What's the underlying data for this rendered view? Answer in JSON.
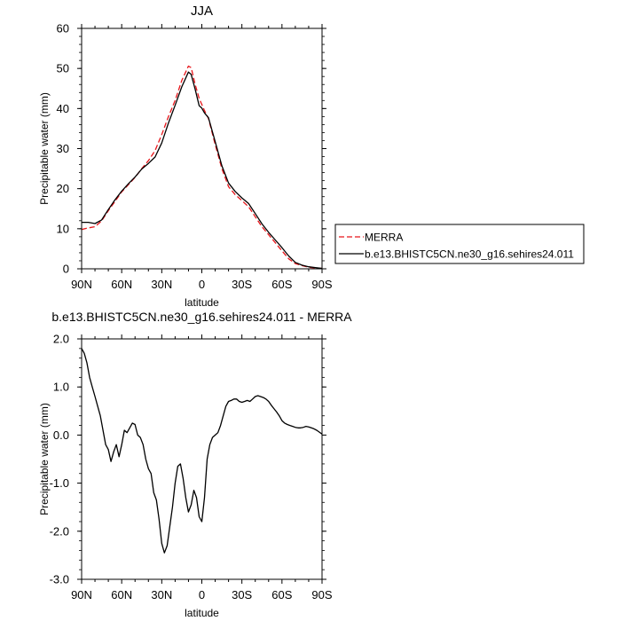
{
  "chart_data": [
    {
      "type": "line",
      "title": "JJA",
      "xlabel": "latitude",
      "ylabel": "Precipitable water (mm)",
      "xlim": [
        90,
        -90
      ],
      "ylim": [
        0,
        60
      ],
      "xticks": [
        90,
        60,
        30,
        0,
        -30,
        -60,
        -90
      ],
      "xtick_labels": [
        "90N",
        "60N",
        "30N",
        "0",
        "30S",
        "60S",
        "90S"
      ],
      "yticks": [
        0,
        10,
        20,
        30,
        40,
        50,
        60
      ],
      "ytick_labels": [
        "0",
        "10",
        "20",
        "30",
        "40",
        "50",
        "60"
      ],
      "grid": false,
      "legend": "outside-right",
      "series": [
        {
          "name": "MERRA",
          "color": "#e8161b",
          "dash": "dashed",
          "x": [
            90,
            85,
            80,
            75,
            70,
            65,
            60,
            55,
            50,
            45,
            40,
            35,
            30,
            25,
            20,
            15,
            10,
            8,
            5,
            2,
            0,
            -2,
            -5,
            -10,
            -15,
            -20,
            -25,
            -30,
            -35,
            -40,
            -45,
            -50,
            -55,
            -60,
            -65,
            -70,
            -75,
            -80,
            -85,
            -90
          ],
          "y": [
            9.8,
            10.2,
            10.5,
            12.0,
            14.5,
            16.8,
            19.2,
            21.0,
            22.8,
            25.0,
            27.0,
            29.5,
            33.5,
            38.0,
            42.0,
            47.0,
            50.6,
            50.2,
            46.0,
            42.5,
            41.0,
            39.5,
            37.5,
            31.0,
            25.0,
            20.5,
            18.5,
            17.0,
            15.5,
            13.0,
            10.5,
            8.5,
            6.5,
            4.5,
            2.5,
            1.3,
            0.8,
            0.4,
            0.2,
            0.1
          ]
        },
        {
          "name": "b.e13.BHISTC5CN.ne30_g16.sehires24.011",
          "color": "#000000",
          "dash": "solid",
          "x": [
            90,
            85,
            80,
            75,
            70,
            65,
            60,
            55,
            50,
            45,
            40,
            35,
            30,
            25,
            20,
            15,
            10,
            8,
            5,
            2,
            0,
            -2,
            -5,
            -10,
            -15,
            -20,
            -25,
            -30,
            -35,
            -40,
            -45,
            -50,
            -55,
            -60,
            -65,
            -70,
            -75,
            -80,
            -85,
            -90
          ],
          "y": [
            11.6,
            11.6,
            11.3,
            12.2,
            14.8,
            17.2,
            19.4,
            21.2,
            22.9,
            24.9,
            26.3,
            27.9,
            31.4,
            36.4,
            40.8,
            45.4,
            49.1,
            48.5,
            44.8,
            40.7,
            40.1,
            38.9,
            37.7,
            31.7,
            25.7,
            21.4,
            19.3,
            17.7,
            16.3,
            13.8,
            11.2,
            9.1,
            7.2,
            5.3,
            3.2,
            1.6,
            0.9,
            0.5,
            0.3,
            0.1
          ]
        }
      ]
    },
    {
      "type": "line",
      "title": "b.e13.BHISTC5CN.ne30_g16.sehires24.011 - MERRA",
      "xlabel": "latitude",
      "ylabel": "Precipitable water (mm)",
      "xlim": [
        90,
        -90
      ],
      "ylim": [
        -3.0,
        2.0
      ],
      "xticks": [
        90,
        60,
        30,
        0,
        -30,
        -60,
        -90
      ],
      "xtick_labels": [
        "90N",
        "60N",
        "30N",
        "0",
        "30S",
        "60S",
        "90S"
      ],
      "yticks": [
        2.0,
        1.0,
        0.0,
        -1.0,
        -2.0,
        -3.0
      ],
      "ytick_labels": [
        "2.0",
        "1.0",
        "0.0",
        "-1.0",
        "-2.0",
        "-3.0"
      ],
      "grid": false,
      "series": [
        {
          "color": "#000000",
          "dash": "solid",
          "x": [
            90,
            88,
            86,
            84,
            82,
            80,
            78,
            76,
            74,
            72,
            70,
            68,
            66,
            64,
            62,
            60,
            58,
            56,
            54,
            52,
            50,
            48,
            46,
            44,
            42,
            40,
            38,
            36,
            34,
            32,
            30,
            28,
            26,
            24,
            22,
            20,
            18,
            16,
            14,
            12,
            10,
            8,
            6,
            4,
            2,
            0,
            -2,
            -4,
            -6,
            -8,
            -10,
            -12,
            -14,
            -16,
            -18,
            -20,
            -22,
            -24,
            -26,
            -28,
            -30,
            -32,
            -34,
            -36,
            -38,
            -40,
            -42,
            -44,
            -46,
            -48,
            -50,
            -52,
            -54,
            -56,
            -58,
            -60,
            -62,
            -64,
            -66,
            -68,
            -70,
            -72,
            -74,
            -76,
            -78,
            -80,
            -82,
            -84,
            -86,
            -88,
            -90
          ],
          "y": [
            1.8,
            1.7,
            1.5,
            1.2,
            1.0,
            0.8,
            0.6,
            0.4,
            0.1,
            -0.2,
            -0.3,
            -0.55,
            -0.35,
            -0.2,
            -0.45,
            -0.2,
            0.1,
            0.05,
            0.15,
            0.25,
            0.22,
            0.0,
            -0.05,
            -0.2,
            -0.5,
            -0.7,
            -0.8,
            -1.2,
            -1.35,
            -1.75,
            -2.25,
            -2.45,
            -2.3,
            -1.9,
            -1.5,
            -1.0,
            -0.65,
            -0.6,
            -0.9,
            -1.3,
            -1.6,
            -1.45,
            -1.15,
            -1.3,
            -1.7,
            -1.8,
            -1.3,
            -0.5,
            -0.2,
            -0.05,
            -0.0,
            0.05,
            0.2,
            0.4,
            0.6,
            0.7,
            0.72,
            0.75,
            0.75,
            0.7,
            0.68,
            0.7,
            0.72,
            0.7,
            0.75,
            0.8,
            0.82,
            0.8,
            0.78,
            0.75,
            0.7,
            0.62,
            0.55,
            0.48,
            0.4,
            0.3,
            0.25,
            0.22,
            0.2,
            0.18,
            0.16,
            0.15,
            0.15,
            0.16,
            0.18,
            0.17,
            0.15,
            0.13,
            0.1,
            0.06,
            0.02
          ]
        }
      ]
    }
  ]
}
